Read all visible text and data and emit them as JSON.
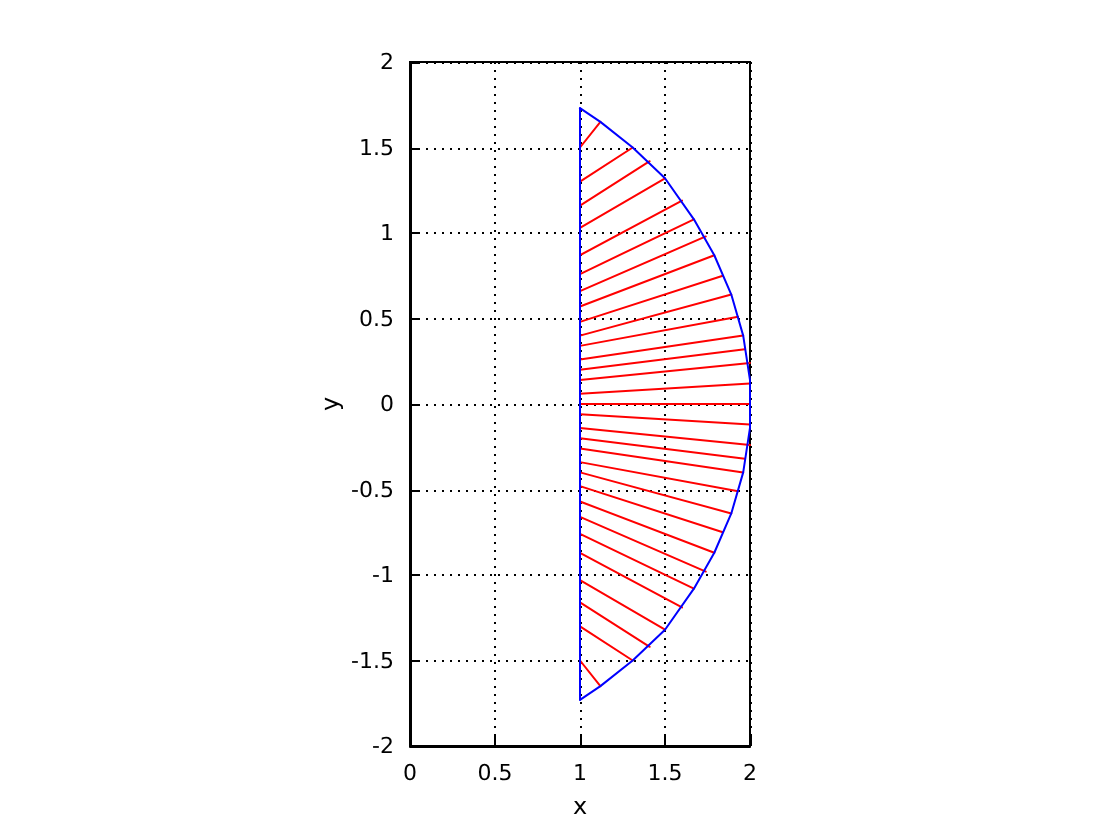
{
  "chart_data": {
    "type": "line",
    "xlabel": "x",
    "ylabel": "y",
    "xlim": [
      0,
      2
    ],
    "ylim": [
      -2,
      2
    ],
    "xticks": [
      0,
      0.5,
      1,
      1.5,
      2
    ],
    "yticks": [
      -2,
      -1.5,
      -1,
      -0.5,
      0,
      0.5,
      1,
      1.5,
      2
    ],
    "grid": true,
    "marker": "none",
    "line_style": "solid",
    "series": [
      {
        "color": "#ff0000",
        "x": [
          1,
          1.12
        ],
        "values": [
          1.5,
          1.65
        ]
      },
      {
        "color": "#ff0000",
        "x": [
          1,
          1.31
        ],
        "values": [
          1.3,
          1.5
        ]
      },
      {
        "color": "#ff0000",
        "x": [
          1,
          1.41
        ],
        "values": [
          1.16,
          1.42
        ]
      },
      {
        "color": "#ff0000",
        "x": [
          1,
          1.5
        ],
        "values": [
          1.03,
          1.32
        ]
      },
      {
        "color": "#ff0000",
        "x": [
          1,
          1.6
        ],
        "values": [
          0.87,
          1.19
        ]
      },
      {
        "color": "#ff0000",
        "x": [
          1,
          1.67
        ],
        "values": [
          0.76,
          1.08
        ]
      },
      {
        "color": "#ff0000",
        "x": [
          1,
          1.74
        ],
        "values": [
          0.66,
          0.98
        ]
      },
      {
        "color": "#ff0000",
        "x": [
          1,
          1.79
        ],
        "values": [
          0.57,
          0.87
        ]
      },
      {
        "color": "#ff0000",
        "x": [
          1,
          1.84
        ],
        "values": [
          0.48,
          0.75
        ]
      },
      {
        "color": "#ff0000",
        "x": [
          1,
          1.89
        ],
        "values": [
          0.4,
          0.64
        ]
      },
      {
        "color": "#ff0000",
        "x": [
          1,
          1.93
        ],
        "values": [
          0.34,
          0.51
        ]
      },
      {
        "color": "#ff0000",
        "x": [
          1,
          1.96
        ],
        "values": [
          0.26,
          0.4
        ]
      },
      {
        "color": "#ff0000",
        "x": [
          1,
          1.97
        ],
        "values": [
          0.2,
          0.32
        ]
      },
      {
        "color": "#ff0000",
        "x": [
          1,
          2
        ],
        "values": [
          0.14,
          0.24
        ]
      },
      {
        "color": "#ff0000",
        "x": [
          1,
          2
        ],
        "values": [
          0.06,
          0.12
        ]
      },
      {
        "color": "#ff0000",
        "x": [
          1,
          2
        ],
        "values": [
          0,
          0
        ]
      },
      {
        "color": "#ff0000",
        "x": [
          1,
          2
        ],
        "values": [
          -0.06,
          -0.12
        ]
      },
      {
        "color": "#ff0000",
        "x": [
          1,
          2
        ],
        "values": [
          -0.14,
          -0.24
        ]
      },
      {
        "color": "#ff0000",
        "x": [
          1,
          1.97
        ],
        "values": [
          -0.2,
          -0.32
        ]
      },
      {
        "color": "#ff0000",
        "x": [
          1,
          1.96
        ],
        "values": [
          -0.26,
          -0.4
        ]
      },
      {
        "color": "#ff0000",
        "x": [
          1,
          1.93
        ],
        "values": [
          -0.34,
          -0.51
        ]
      },
      {
        "color": "#ff0000",
        "x": [
          1,
          1.89
        ],
        "values": [
          -0.4,
          -0.64
        ]
      },
      {
        "color": "#ff0000",
        "x": [
          1,
          1.84
        ],
        "values": [
          -0.48,
          -0.75
        ]
      },
      {
        "color": "#ff0000",
        "x": [
          1,
          1.79
        ],
        "values": [
          -0.57,
          -0.87
        ]
      },
      {
        "color": "#ff0000",
        "x": [
          1,
          1.74
        ],
        "values": [
          -0.66,
          -0.98
        ]
      },
      {
        "color": "#ff0000",
        "x": [
          1,
          1.67
        ],
        "values": [
          -0.76,
          -1.08
        ]
      },
      {
        "color": "#ff0000",
        "x": [
          1,
          1.6
        ],
        "values": [
          -0.87,
          -1.19
        ]
      },
      {
        "color": "#ff0000",
        "x": [
          1,
          1.5
        ],
        "values": [
          -1.03,
          -1.32
        ]
      },
      {
        "color": "#ff0000",
        "x": [
          1,
          1.41
        ],
        "values": [
          -1.16,
          -1.42
        ]
      },
      {
        "color": "#ff0000",
        "x": [
          1,
          1.31
        ],
        "values": [
          -1.3,
          -1.5
        ]
      },
      {
        "color": "#ff0000",
        "x": [
          1,
          1.12
        ],
        "values": [
          -1.5,
          -1.65
        ]
      },
      {
        "color": "#0000ff",
        "x": [
          1,
          1
        ],
        "values": [
          -1.73,
          1.73
        ]
      },
      {
        "color": "#0000ff",
        "x": [
          1,
          1.12,
          1.31,
          1.5,
          1.67,
          1.79,
          1.89,
          1.96,
          2,
          2,
          1.96,
          1.89,
          1.79,
          1.67,
          1.5,
          1.31,
          1.12,
          1
        ],
        "values": [
          1.73,
          1.65,
          1.5,
          1.32,
          1.08,
          0.87,
          0.64,
          0.4,
          0.14,
          -0.14,
          -0.4,
          -0.64,
          -0.87,
          -1.08,
          -1.32,
          -1.5,
          -1.65,
          -1.73
        ]
      }
    ]
  }
}
